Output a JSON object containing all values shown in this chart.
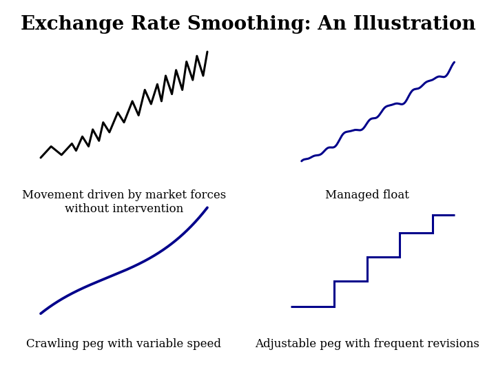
{
  "title": "Exchange Rate Smoothing: An Illustration",
  "title_fontsize": 20,
  "title_fontweight": "bold",
  "background_color": "#ffffff",
  "label1": "Movement driven by market forces\nwithout intervention",
  "label2": "Managed float",
  "label3": "Crawling peg with variable speed",
  "label4": "Adjustable peg with frequent revisions",
  "label_fontsize": 12,
  "black_color": "#000000",
  "blue_color": "#00008B",
  "lw": 2.2
}
